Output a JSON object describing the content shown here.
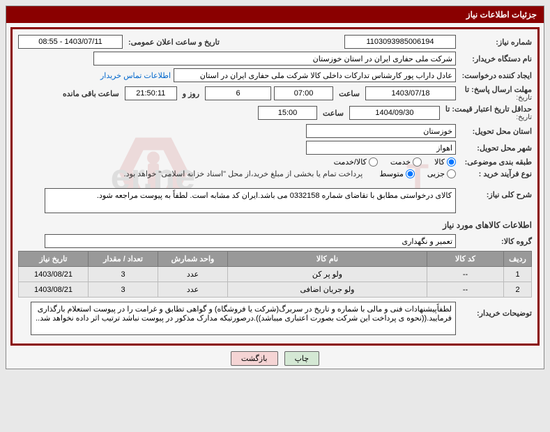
{
  "header": {
    "title": "جزئیات اطلاعات نیاز"
  },
  "fields": {
    "need_number_label": "شماره نیاز:",
    "need_number": "1103093985006194",
    "announce_label": "تاریخ و ساعت اعلان عمومی:",
    "announce_value": "1403/07/11 - 08:55",
    "buyer_org_label": "نام دستگاه خریدار:",
    "buyer_org": "شرکت ملی حفاری ایران در استان خوزستان",
    "requester_label": "ایجاد کننده درخواست:",
    "requester": "عادل داراب پور کارشناس تدارکات داخلی کالا شرکت ملی حفاری ایران در استان",
    "contact_link": "اطلاعات تماس خریدار",
    "deadline_label": "مهلت ارسال پاسخ: تا",
    "deadline_sub": "تاریخ:",
    "deadline_date": "1403/07/18",
    "time_label": "ساعت",
    "deadline_time": "07:00",
    "days": "6",
    "days_and_label": "روز و",
    "countdown": "21:50:11",
    "remaining_label": "ساعت باقی مانده",
    "validity_label": "حداقل تاریخ اعتبار قیمت: تا",
    "validity_sub": "تاریخ:",
    "validity_date": "1404/09/30",
    "validity_time": "15:00",
    "province_label": "استان محل تحویل:",
    "province": "خوزستان",
    "city_label": "شهر محل تحویل:",
    "city": "اهواز",
    "category_label": "طبقه بندی موضوعی:",
    "radio_goods": "کالا",
    "radio_service": "خدمت",
    "radio_goods_service": "کالا/خدمت",
    "process_label": "نوع فرآیند خرید :",
    "radio_partial": "جزیی",
    "radio_medium": "متوسط",
    "process_note": "پرداخت تمام یا بخشی از مبلغ خرید،از محل \"اسناد خزانه اسلامی\" خواهد بود.",
    "desc_label": "شرح کلی نیاز:",
    "desc_text": "کالای درخواستی مطابق با تقاضای شماره 0332158 می باشد.ایران کد مشابه است. لطفاً به پیوست مراجعه شود.",
    "items_section": "اطلاعات کالاهای مورد نیاز",
    "group_label": "گروه کالا:",
    "group_value": "تعمیر و نگهداری",
    "buyer_notes_label": "توضیحات خریدار:",
    "buyer_notes": "لطفاًپیشنهادات فنی و مالی با شماره و تاریخ در سربرگ(شرکت یا فروشگاه) و گواهی تطابق و غرامت را در پیوست استعلام بارگذاری فرمایید.((نحوه ی پرداخت این شرکت بصورت اعتباری میباشد)).درصورتیکه مدارک مذکور در پیوست نباشد ترتیب اثر داده نخواهد شد.."
  },
  "table": {
    "headers": {
      "row": "ردیف",
      "code": "کد کالا",
      "name": "نام کالا",
      "unit": "واحد شمارش",
      "qty": "تعداد / مقدار",
      "date": "تاریخ نیاز"
    },
    "rows": [
      {
        "row": "1",
        "code": "--",
        "name": "ولو پر کن",
        "unit": "عدد",
        "qty": "3",
        "date": "1403/08/21"
      },
      {
        "row": "2",
        "code": "--",
        "name": "ولو جریان اضافی",
        "unit": "عدد",
        "qty": "3",
        "date": "1403/08/21"
      }
    ]
  },
  "buttons": {
    "print": "چاپ",
    "back": "بازگشت"
  },
  "colors": {
    "header_bg": "#8a0000",
    "border": "#8a0000",
    "link": "#0066cc",
    "th_bg": "#999999"
  }
}
